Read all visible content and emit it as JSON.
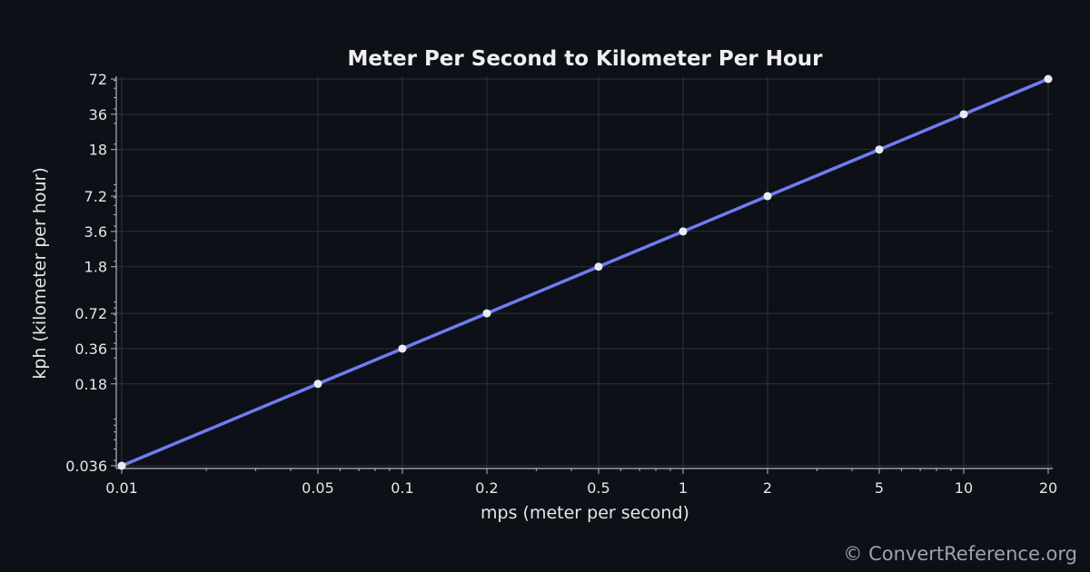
{
  "watermark": "© ConvertReference.org",
  "colors": {
    "background": "#0d1117",
    "line": "#6f7cf0",
    "marker": "#e8ecf2",
    "grid": "#2b333d",
    "axis": "#aeb6c0",
    "text": "#e6e6e6"
  },
  "chart_data": {
    "type": "line",
    "title": "Meter Per Second to Kilometer Per Hour",
    "xlabel": "mps (meter per second)",
    "ylabel": "kph (kilometer per hour)",
    "xscale": "log",
    "yscale": "log",
    "xlim": [
      0.01,
      20
    ],
    "ylim": [
      0.036,
      72
    ],
    "grid": true,
    "x_ticks": [
      "0.01",
      "0.05",
      "0.1",
      "0.2",
      "0.5",
      "1",
      "2",
      "5",
      "10",
      "20"
    ],
    "y_ticks": [
      "0.036",
      "0.18",
      "0.36",
      "0.72",
      "1.8",
      "3.6",
      "7.2",
      "18",
      "36",
      "72"
    ],
    "series": [
      {
        "x": [
          0.01,
          0.05,
          0.1,
          0.2,
          0.5,
          1,
          2,
          5,
          10,
          20
        ],
        "y": [
          0.036,
          0.18,
          0.36,
          0.72,
          1.8,
          3.6,
          7.2,
          18,
          36,
          72
        ]
      }
    ]
  }
}
